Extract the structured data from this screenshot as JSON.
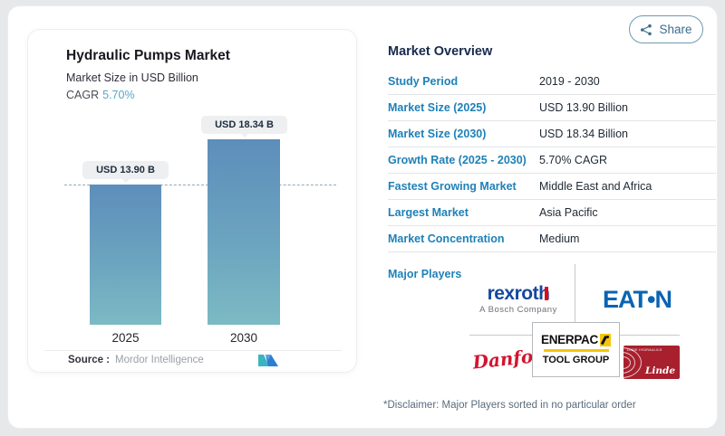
{
  "page": {
    "share_button": {
      "label": "Share"
    },
    "disclaimer": "*Disclaimer: Major Players sorted in no particular order"
  },
  "chart": {
    "title": "Hydraulic Pumps Market",
    "subtitle": "Market Size in USD Billion",
    "cagr_label": "CAGR",
    "cagr_value": "5.70%",
    "source_label": "Source :",
    "source_value": "Mordor Intelligence"
  },
  "chart_data": {
    "type": "bar",
    "title": "Hydraulic Pumps Market",
    "subtitle": "Market Size in USD Billion",
    "unit": "USD Billion",
    "cagr": "5.70%",
    "categories": [
      "2025",
      "2030"
    ],
    "values": [
      13.9,
      18.34
    ],
    "bar_value_labels": [
      "USD 13.90 B",
      "USD 18.34 B"
    ],
    "ylim": [
      0,
      18.34
    ],
    "reference_line": 13.9,
    "grid": false,
    "bar_color_top": "#5d8ebb",
    "bar_color_bottom": "#7cbac4"
  },
  "overview": {
    "title": "Market Overview",
    "rows": [
      {
        "label": "Study Period",
        "value": "2019 - 2030"
      },
      {
        "label": "Market Size (2025)",
        "value": "USD 13.90 Billion"
      },
      {
        "label": "Market Size (2030)",
        "value": "USD 18.34 Billion"
      },
      {
        "label": "Growth Rate (2025 - 2030)",
        "value": "5.70% CAGR"
      },
      {
        "label": "Fastest Growing Market",
        "value": "Middle East and Africa"
      },
      {
        "label": "Largest Market",
        "value": "Asia Pacific"
      },
      {
        "label": "Market Concentration",
        "value": "Medium"
      }
    ],
    "major_players_label": "Major Players",
    "players": [
      {
        "name": "rexroth",
        "subtitle": "A Bosch Company"
      },
      {
        "name": "EAT•N"
      },
      {
        "name": "Danfoss"
      },
      {
        "name": "ENERPAC",
        "subtitle": "TOOL GROUP"
      },
      {
        "name": "Linde",
        "small_text": "LINDE HYDRAULICS"
      }
    ]
  },
  "colors": {
    "label_blue": "#1e81b8",
    "cagr_blue": "#58a7c6",
    "dark_text": "#212b36",
    "bar_top": "#5d8ebb",
    "bar_bottom": "#7cbac4",
    "eaton_blue": "#0a64b2",
    "danfoss_red": "#d2152f",
    "linde_red": "#a8202e",
    "enerpac_yellow": "#f6c50b"
  }
}
